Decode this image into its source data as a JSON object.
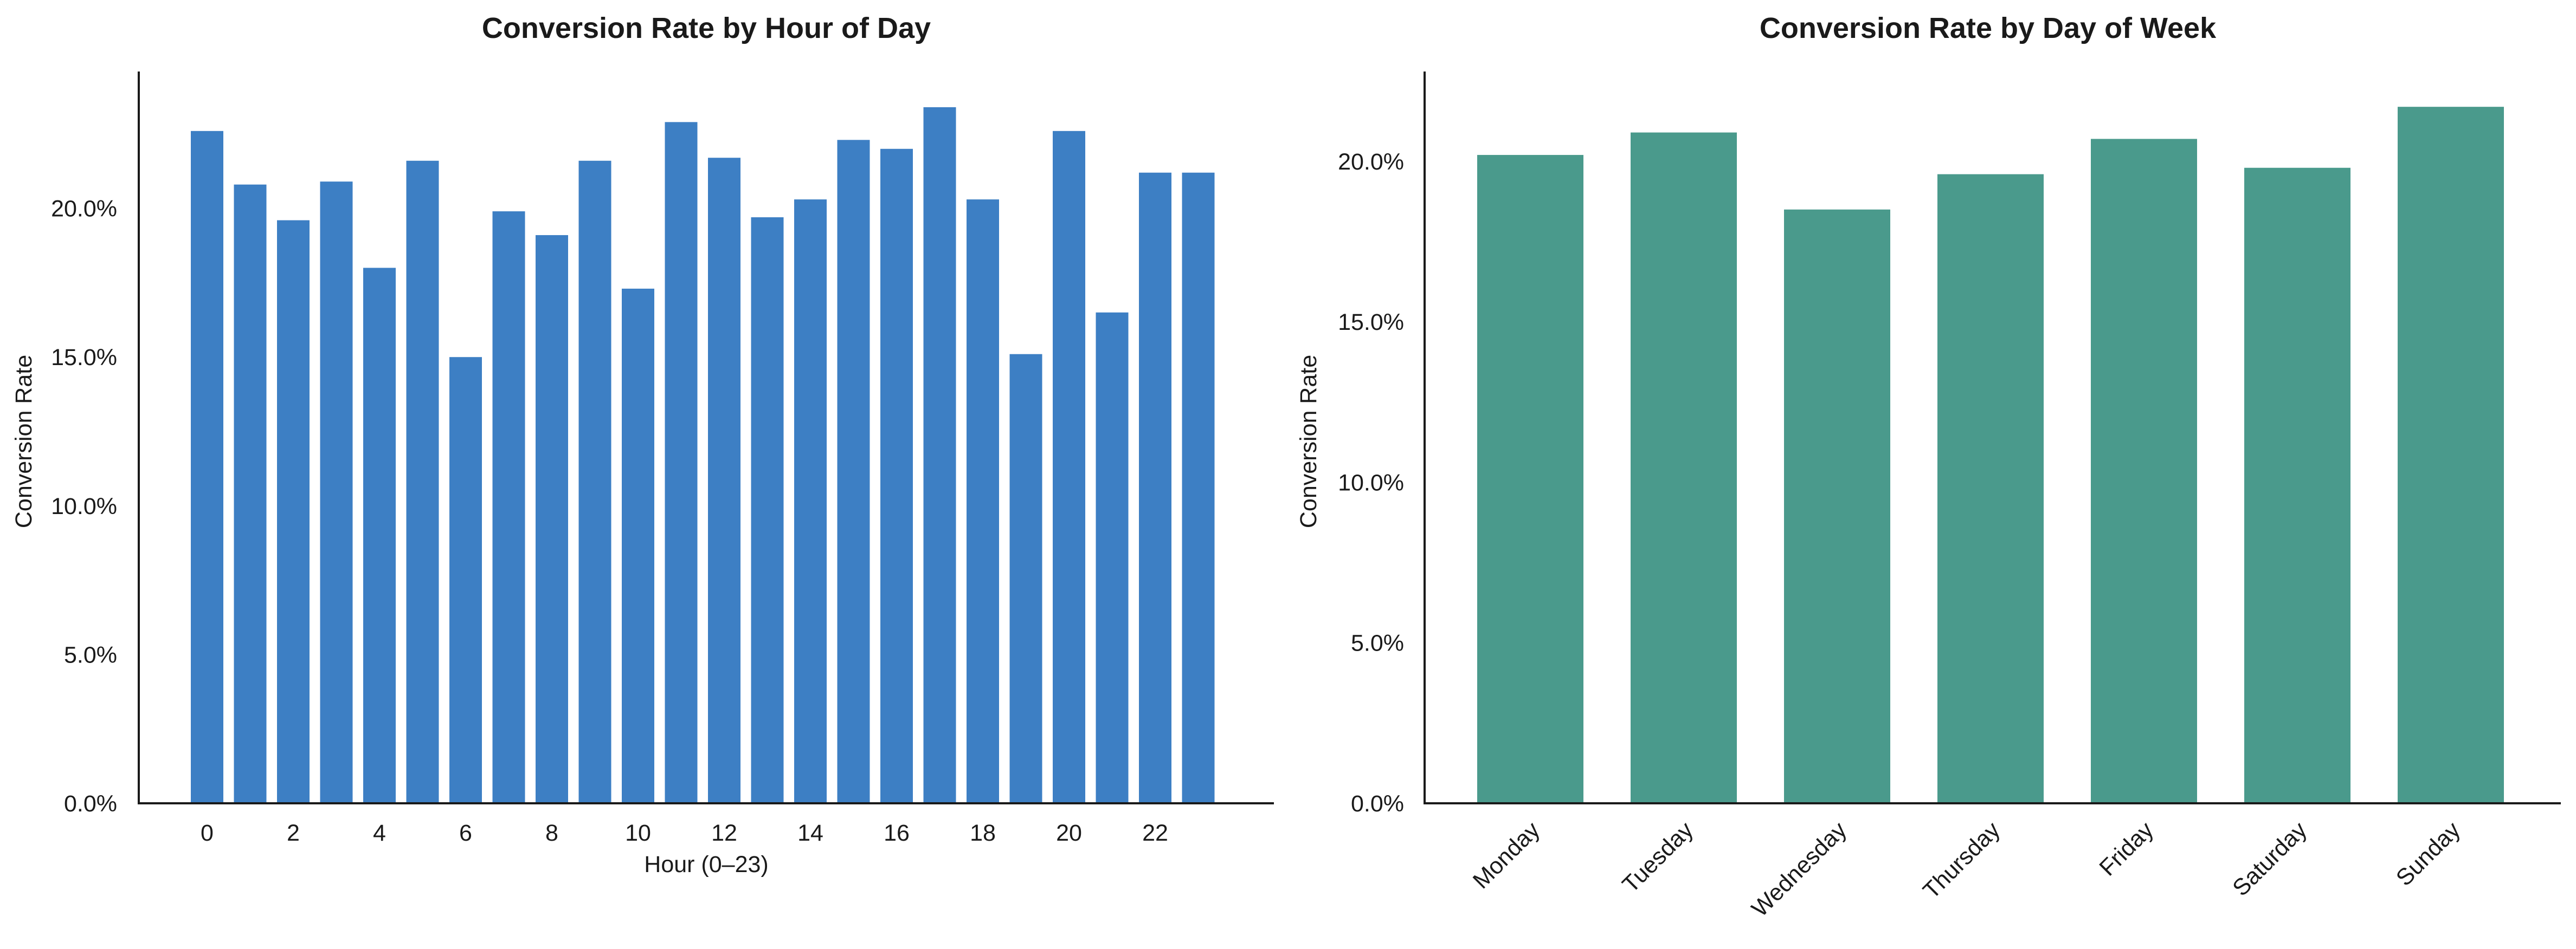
{
  "chart_data": [
    {
      "type": "bar",
      "title": "Conversion Rate by Hour of Day",
      "xlabel": "Hour (0–23)",
      "ylabel": "Conversion Rate",
      "categories": [
        "0",
        "1",
        "2",
        "3",
        "4",
        "5",
        "6",
        "7",
        "8",
        "9",
        "10",
        "11",
        "12",
        "13",
        "14",
        "15",
        "16",
        "17",
        "18",
        "19",
        "20",
        "21",
        "22",
        "23"
      ],
      "values": [
        0.226,
        0.208,
        0.196,
        0.209,
        0.18,
        0.216,
        0.15,
        0.199,
        0.191,
        0.216,
        0.173,
        0.229,
        0.217,
        0.197,
        0.203,
        0.223,
        0.22,
        0.234,
        0.203,
        0.151,
        0.226,
        0.165,
        0.212,
        0.212
      ],
      "xticks": [
        "0",
        "2",
        "4",
        "6",
        "8",
        "10",
        "12",
        "14",
        "16",
        "18",
        "20",
        "22"
      ],
      "yticks": [
        "0.0%",
        "5.0%",
        "10.0%",
        "15.0%",
        "20.0%"
      ],
      "ylim": [
        0,
        0.246
      ],
      "color": "#3d7fc4",
      "grid": false
    },
    {
      "type": "bar",
      "title": "Conversion Rate by Day of Week",
      "xlabel": "",
      "ylabel": "Conversion Rate",
      "categories": [
        "Monday",
        "Tuesday",
        "Wednesday",
        "Thursday",
        "Friday",
        "Saturday",
        "Sunday"
      ],
      "values": [
        0.202,
        0.209,
        0.185,
        0.196,
        0.207,
        0.198,
        0.217
      ],
      "xticks": [
        "Monday",
        "Tuesday",
        "Wednesday",
        "Thursday",
        "Friday",
        "Saturday",
        "Sunday"
      ],
      "yticks": [
        "0.0%",
        "5.0%",
        "10.0%",
        "15.0%",
        "20.0%"
      ],
      "ylim": [
        0,
        0.228
      ],
      "color": "#4a9a8c",
      "grid": false
    }
  ]
}
